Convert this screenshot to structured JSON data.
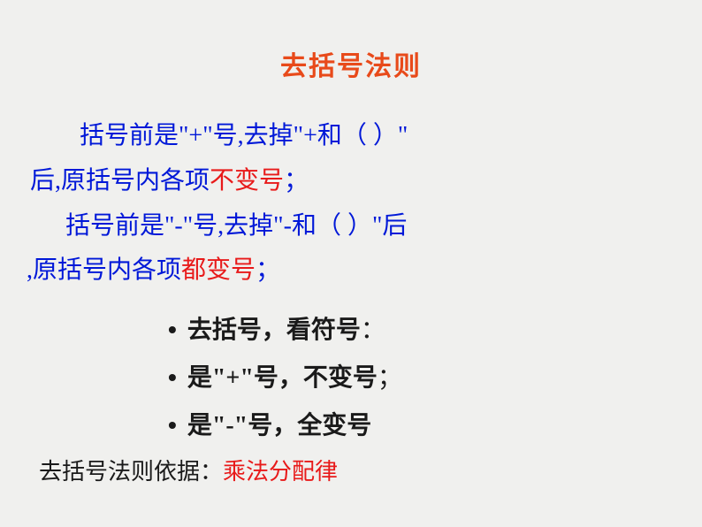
{
  "colors": {
    "background": "#f0f0ee",
    "title": "#e84a1a",
    "blue": "#0018d8",
    "red": "#e81a1a",
    "black": "#1a1a1a"
  },
  "fontsizes": {
    "title": 30,
    "body": 28,
    "bullet": 28,
    "footer": 26
  },
  "title": "去括号法则",
  "rule1": {
    "part1": "括号前是\"+\"号,去掉\"+和（   ）\"后,原括号内各项",
    "part1_line1": "括号前是\"+\"号,去掉\"+和（   ）\"",
    "part1_line2_a": "后,原括号内各项",
    "highlight": "不变号",
    "part2": "；"
  },
  "rule2": {
    "part1_line1": "括号前是\"-\"号,去掉\"-和（   ）\"后",
    "part1_line2_a": ",原括号内各项",
    "highlight": "都变号",
    "part2": "；"
  },
  "bullets": {
    "b1_a": "去括号， ",
    "b1_b": "看符号",
    "b1_colon": "：",
    "b2_a": "是\"+\"号，",
    "b2_b": "不变号",
    "b2_semi": "；",
    "b3_a": "是\"-\"号，",
    "b3_b": "全变号"
  },
  "footer": {
    "label": "去括号法则依据：",
    "value": "乘法分配律"
  }
}
